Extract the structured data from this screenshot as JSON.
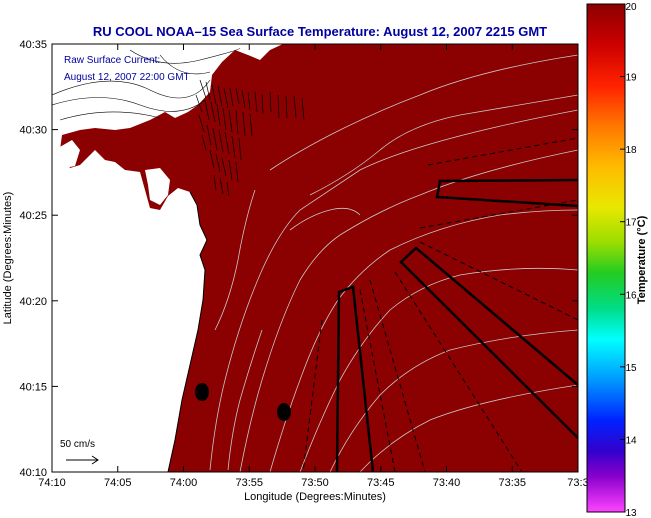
{
  "title": "RU COOL  NOAA–15  Sea Surface Temperature:  August 12, 2007 2215 GMT",
  "inset_text": {
    "line1": "Raw Surface Current:",
    "line2": "August 12, 2007 22:00 GMT"
  },
  "scale_label": "50 cm/s",
  "x_axis": {
    "label": "Longitude (Degrees:Minutes)",
    "ticks": [
      "74:10",
      "74:05",
      "74:00",
      "73:55",
      "73:50",
      "73:45",
      "73:40",
      "73:35",
      "73:3"
    ]
  },
  "y_axis": {
    "label": "Latitude (Degrees:Minutes)",
    "ticks": [
      "40:35",
      "40:30",
      "40:25",
      "40:20",
      "40:15",
      "40:10"
    ]
  },
  "colorbar": {
    "label": "Temperature (°C)",
    "ticks": [
      "20",
      "19",
      "18",
      "17",
      "16",
      "15",
      "14",
      "13"
    ]
  },
  "colors": {
    "sea": "#8b0000",
    "land": "#ffffff",
    "title": "#0000a0",
    "contour": "#c8c8c8"
  }
}
